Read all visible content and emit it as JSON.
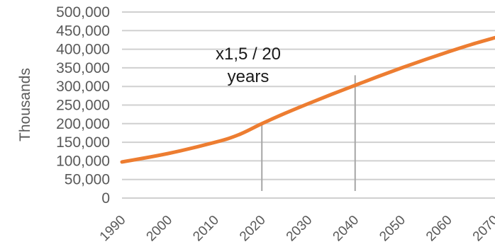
{
  "chart_data": {
    "type": "line",
    "ylabel": "Thousands",
    "x": [
      1990,
      2000,
      2010,
      2020,
      2030,
      2040,
      2050,
      2060,
      2070
    ],
    "x_tick_labels": [
      "1990",
      "2000",
      "2010",
      "2020",
      "2030",
      "2040",
      "2050",
      "2060",
      "2070"
    ],
    "y_tick_values": [
      0,
      50000,
      100000,
      150000,
      200000,
      250000,
      300000,
      350000,
      400000,
      450000,
      500000
    ],
    "y_tick_labels": [
      "0",
      "50,000",
      "100,000",
      "150,000",
      "200,000",
      "250,000",
      "300,000",
      "350,000",
      "400,000",
      "450,000",
      "500,000"
    ],
    "ylim": [
      0,
      500000
    ],
    "grid": true,
    "series": [
      {
        "color": "#ed7d31",
        "x": [
          1990,
          2000,
          2010,
          2015,
          2020,
          2025,
          2030,
          2035,
          2040,
          2045,
          2050,
          2055,
          2060,
          2065,
          2070
        ],
        "values": [
          97000,
          120000,
          150000,
          170000,
          200000,
          228000,
          254000,
          279000,
          303000,
          327000,
          350000,
          372000,
          393000,
          413000,
          431000
        ]
      }
    ],
    "annotations": [
      {
        "text_line1": "x1,5 / 20",
        "text_line2": "years"
      }
    ],
    "reference_lines": [
      {
        "x": 2020,
        "y_from": 0,
        "y_to": 200000,
        "color": "#a6a6a6"
      },
      {
        "x": 2040,
        "y_from": 0,
        "y_to": 330000,
        "color": "#a6a6a6"
      }
    ],
    "colors": {
      "gridline": "#d0d0d0",
      "axis_text": "#595959"
    }
  }
}
